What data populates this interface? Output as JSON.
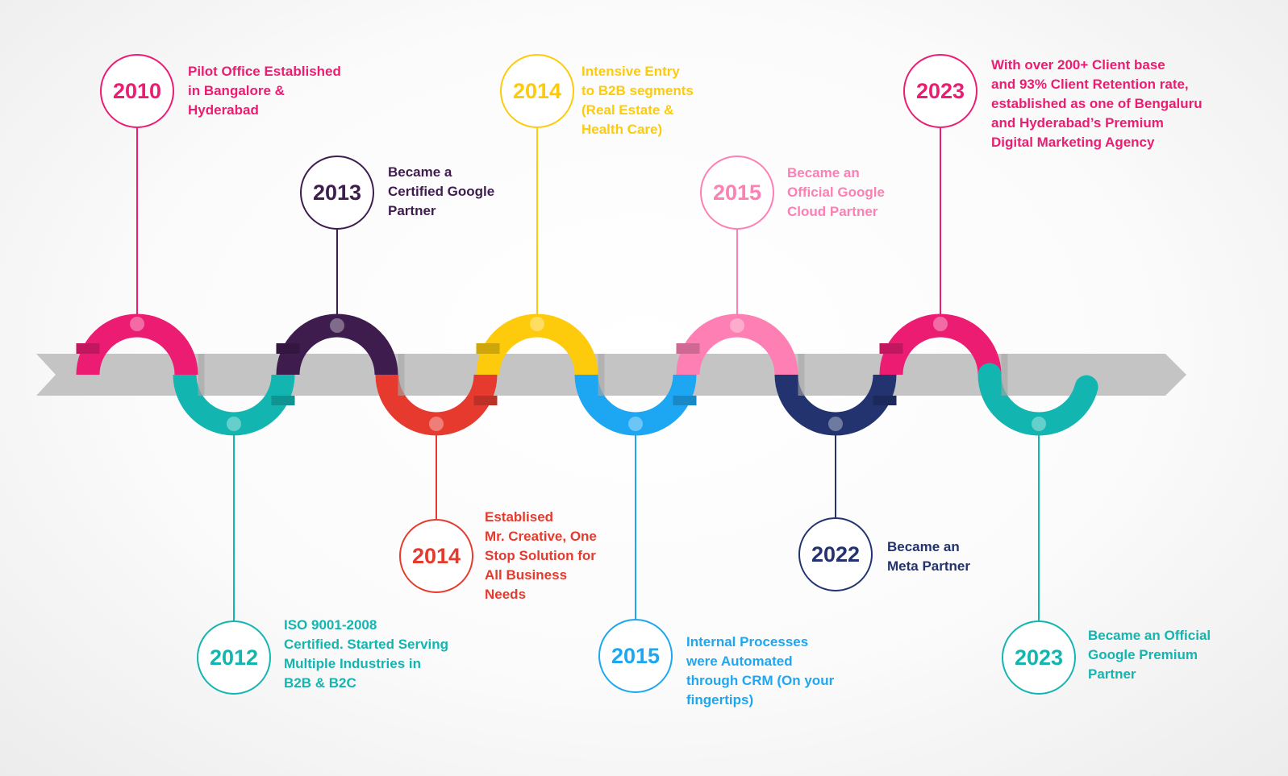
{
  "milestones": [
    {
      "year": "2010",
      "color": "#ec1c73",
      "text_color": "#ec1c73",
      "lines": [
        "Pilot Office Established",
        "in Bangalore &",
        "Hyderabad"
      ]
    },
    {
      "year": "2012",
      "color": "#13b5b1",
      "text_color": "#13b5b1",
      "lines": [
        "ISO 9001-2008",
        "Certified. Started Serving",
        "Multiple Industries in",
        "B2B & B2C"
      ]
    },
    {
      "year": "2013",
      "color": "#3e1c4e",
      "text_color": "#3e1c4e",
      "lines": [
        "Became a",
        "Certified Google",
        "Partner"
      ]
    },
    {
      "year": "2014",
      "color": "#e63a2e",
      "text_color": "#e63a2e",
      "lines": [
        "Establised",
        "Mr. Creative, One",
        "Stop Solution for",
        "All Business",
        "Needs"
      ]
    },
    {
      "year": "2014",
      "color": "#fdcb0b",
      "text_color": "#fdcb0b",
      "lines": [
        "Intensive Entry",
        "to B2B segments",
        "(Real Estate &",
        "Health Care)"
      ]
    },
    {
      "year": "2015",
      "color": "#1da7f2",
      "text_color": "#1da7f2",
      "lines": [
        "Internal Processes",
        "were Automated",
        "through CRM (On your",
        "fingertips)"
      ]
    },
    {
      "year": "2015",
      "color": "#fd7fb3",
      "text_color": "#fd7fb3",
      "lines": [
        "Became an",
        "Official Google",
        "Cloud Partner"
      ]
    },
    {
      "year": "2022",
      "color": "#22336f",
      "text_color": "#22336f",
      "lines": [
        "Became an",
        "Meta Partner"
      ]
    },
    {
      "year": "2023",
      "color": "#ec1c73",
      "text_color": "#ec1c73",
      "lines": [
        "With over 200+ Client base",
        "and 93% Client Retention rate,",
        "established as one of Bengaluru",
        "and Hyderabad’s Premium",
        "Digital Marketing Agency"
      ]
    },
    {
      "year": "2023",
      "color": "#13b5b1",
      "text_color": "#13b5b1",
      "lines": [
        "Became an Official",
        "Google Premium",
        "Partner"
      ]
    }
  ],
  "colors": {
    "arrow": "#c4c4c4",
    "arrow_shadow": "#a7a7a7"
  }
}
